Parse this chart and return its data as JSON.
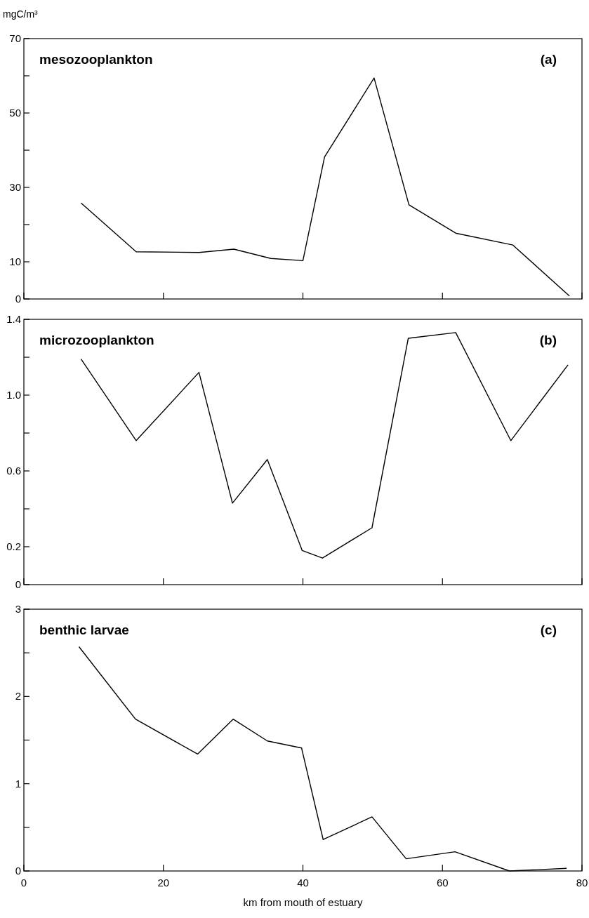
{
  "chart_data": [
    {
      "type": "line",
      "title": "mesozooplankton",
      "ylabel": "mgC/m³",
      "annotations": [
        "(a)"
      ],
      "x": [
        8.2,
        16.1,
        25.1,
        30.1,
        35.4,
        40,
        43.1,
        50.2,
        55.2,
        61.9,
        70.1,
        78.2
      ],
      "series": [
        {
          "color": "#000000",
          "values": [
            25.8,
            12.7,
            12.5,
            13.4,
            10.9,
            10.3,
            38.2,
            59.4,
            25.3,
            17.7,
            14.5,
            0.8
          ]
        }
      ],
      "xlim": [
        0,
        80
      ],
      "xticks": [
        0,
        20,
        40,
        60,
        80
      ],
      "ylim": [
        0,
        70
      ],
      "yticks": [
        0,
        10,
        {
          "value": 20,
          "label": null
        },
        30,
        {
          "value": 40,
          "label": null
        },
        50,
        {
          "value": 60,
          "label": null
        },
        70
      ],
      "tick_labels": "y",
      "marker": "none",
      "line_style": "solid"
    },
    {
      "type": "line",
      "title": "microzooplankton",
      "annotations": [
        "(b)"
      ],
      "x": [
        8.2,
        16.1,
        25.1,
        29.9,
        34.9,
        39.9,
        42.8,
        49.9,
        55.1,
        61.9,
        69.8,
        78
      ],
      "series": [
        {
          "color": "#000000",
          "values": [
            1.19,
            0.76,
            1.12,
            0.43,
            0.66,
            0.18,
            0.14,
            0.3,
            1.3,
            1.33,
            0.76,
            1.16
          ]
        }
      ],
      "xlim": [
        0,
        80
      ],
      "xticks": [
        0,
        20,
        40,
        60,
        80
      ],
      "ylim": [
        0,
        1.4
      ],
      "yticks": [
        0,
        0.2,
        {
          "value": 0.4,
          "label": null
        },
        0.6,
        {
          "value": 0.8,
          "label": null
        },
        {
          "value": 1,
          "label": "1.0"
        },
        {
          "value": 1.2,
          "label": null
        },
        1.4
      ],
      "tick_labels": "y",
      "marker": "none",
      "line_style": "solid"
    },
    {
      "type": "line",
      "title": "benthic larvae",
      "xlabel": "km from mouth of estuary",
      "annotations": [
        "(c)"
      ],
      "x": [
        7.9,
        16,
        24.9,
        30,
        34.9,
        39.8,
        42.9,
        49.9,
        54.8,
        61.8,
        69.6,
        77.8
      ],
      "series": [
        {
          "color": "#000000",
          "values": [
            2.57,
            1.74,
            1.34,
            1.74,
            1.49,
            1.41,
            0.36,
            0.62,
            0.14,
            0.22,
            0,
            0.03
          ]
        }
      ],
      "xlim": [
        0,
        80
      ],
      "xticks": [
        0,
        20,
        40,
        60,
        80
      ],
      "ylim": [
        0,
        3
      ],
      "yticks": [
        0,
        {
          "value": 0.5,
          "label": null
        },
        1,
        {
          "value": 1.5,
          "label": null
        },
        2,
        {
          "value": 2.5,
          "label": null
        },
        3
      ],
      "marker": "none",
      "line_style": "solid"
    }
  ]
}
